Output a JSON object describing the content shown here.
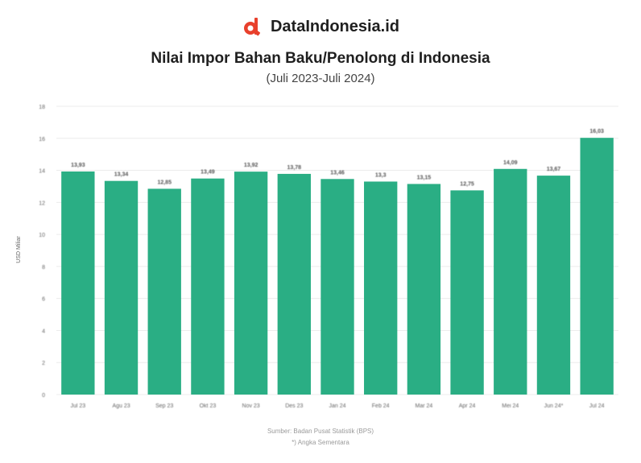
{
  "brand": {
    "name": "DataIndonesia.id",
    "logo_icon": "d-logo-icon",
    "logo_color": "#e8402c"
  },
  "chart_data": {
    "type": "bar",
    "title": "Nilai Impor Bahan Baku/Penolong di Indonesia",
    "subtitle": "(Juli 2023-Juli 2024)",
    "ylabel": "USD Miliar",
    "xlabel": "",
    "ylim": [
      0,
      18
    ],
    "yticks": [
      0,
      2,
      4,
      6,
      8,
      10,
      12,
      14,
      16,
      18
    ],
    "grid": true,
    "bar_color": "#2aae84",
    "categories": [
      "Jul 23",
      "Agu 23",
      "Sep 23",
      "Okt 23",
      "Nov 23",
      "Des 23",
      "Jan 24",
      "Feb 24",
      "Mar 24",
      "Apr 24",
      "Mei 24",
      "Jun 24*",
      "Jul 24"
    ],
    "values": [
      13.93,
      13.34,
      12.85,
      13.49,
      13.92,
      13.78,
      13.46,
      13.3,
      13.15,
      12.75,
      14.09,
      13.67,
      16.03
    ],
    "value_labels": [
      "13,93",
      "13,34",
      "12,85",
      "13,49",
      "13,92",
      "13,78",
      "13,46",
      "13,3",
      "13,15",
      "12,75",
      "14,09",
      "13,67",
      "16,03"
    ]
  },
  "footer": {
    "source": "Sumber: Badan Pusat Statistik (BPS)",
    "note": "*) Angka Sementara"
  }
}
